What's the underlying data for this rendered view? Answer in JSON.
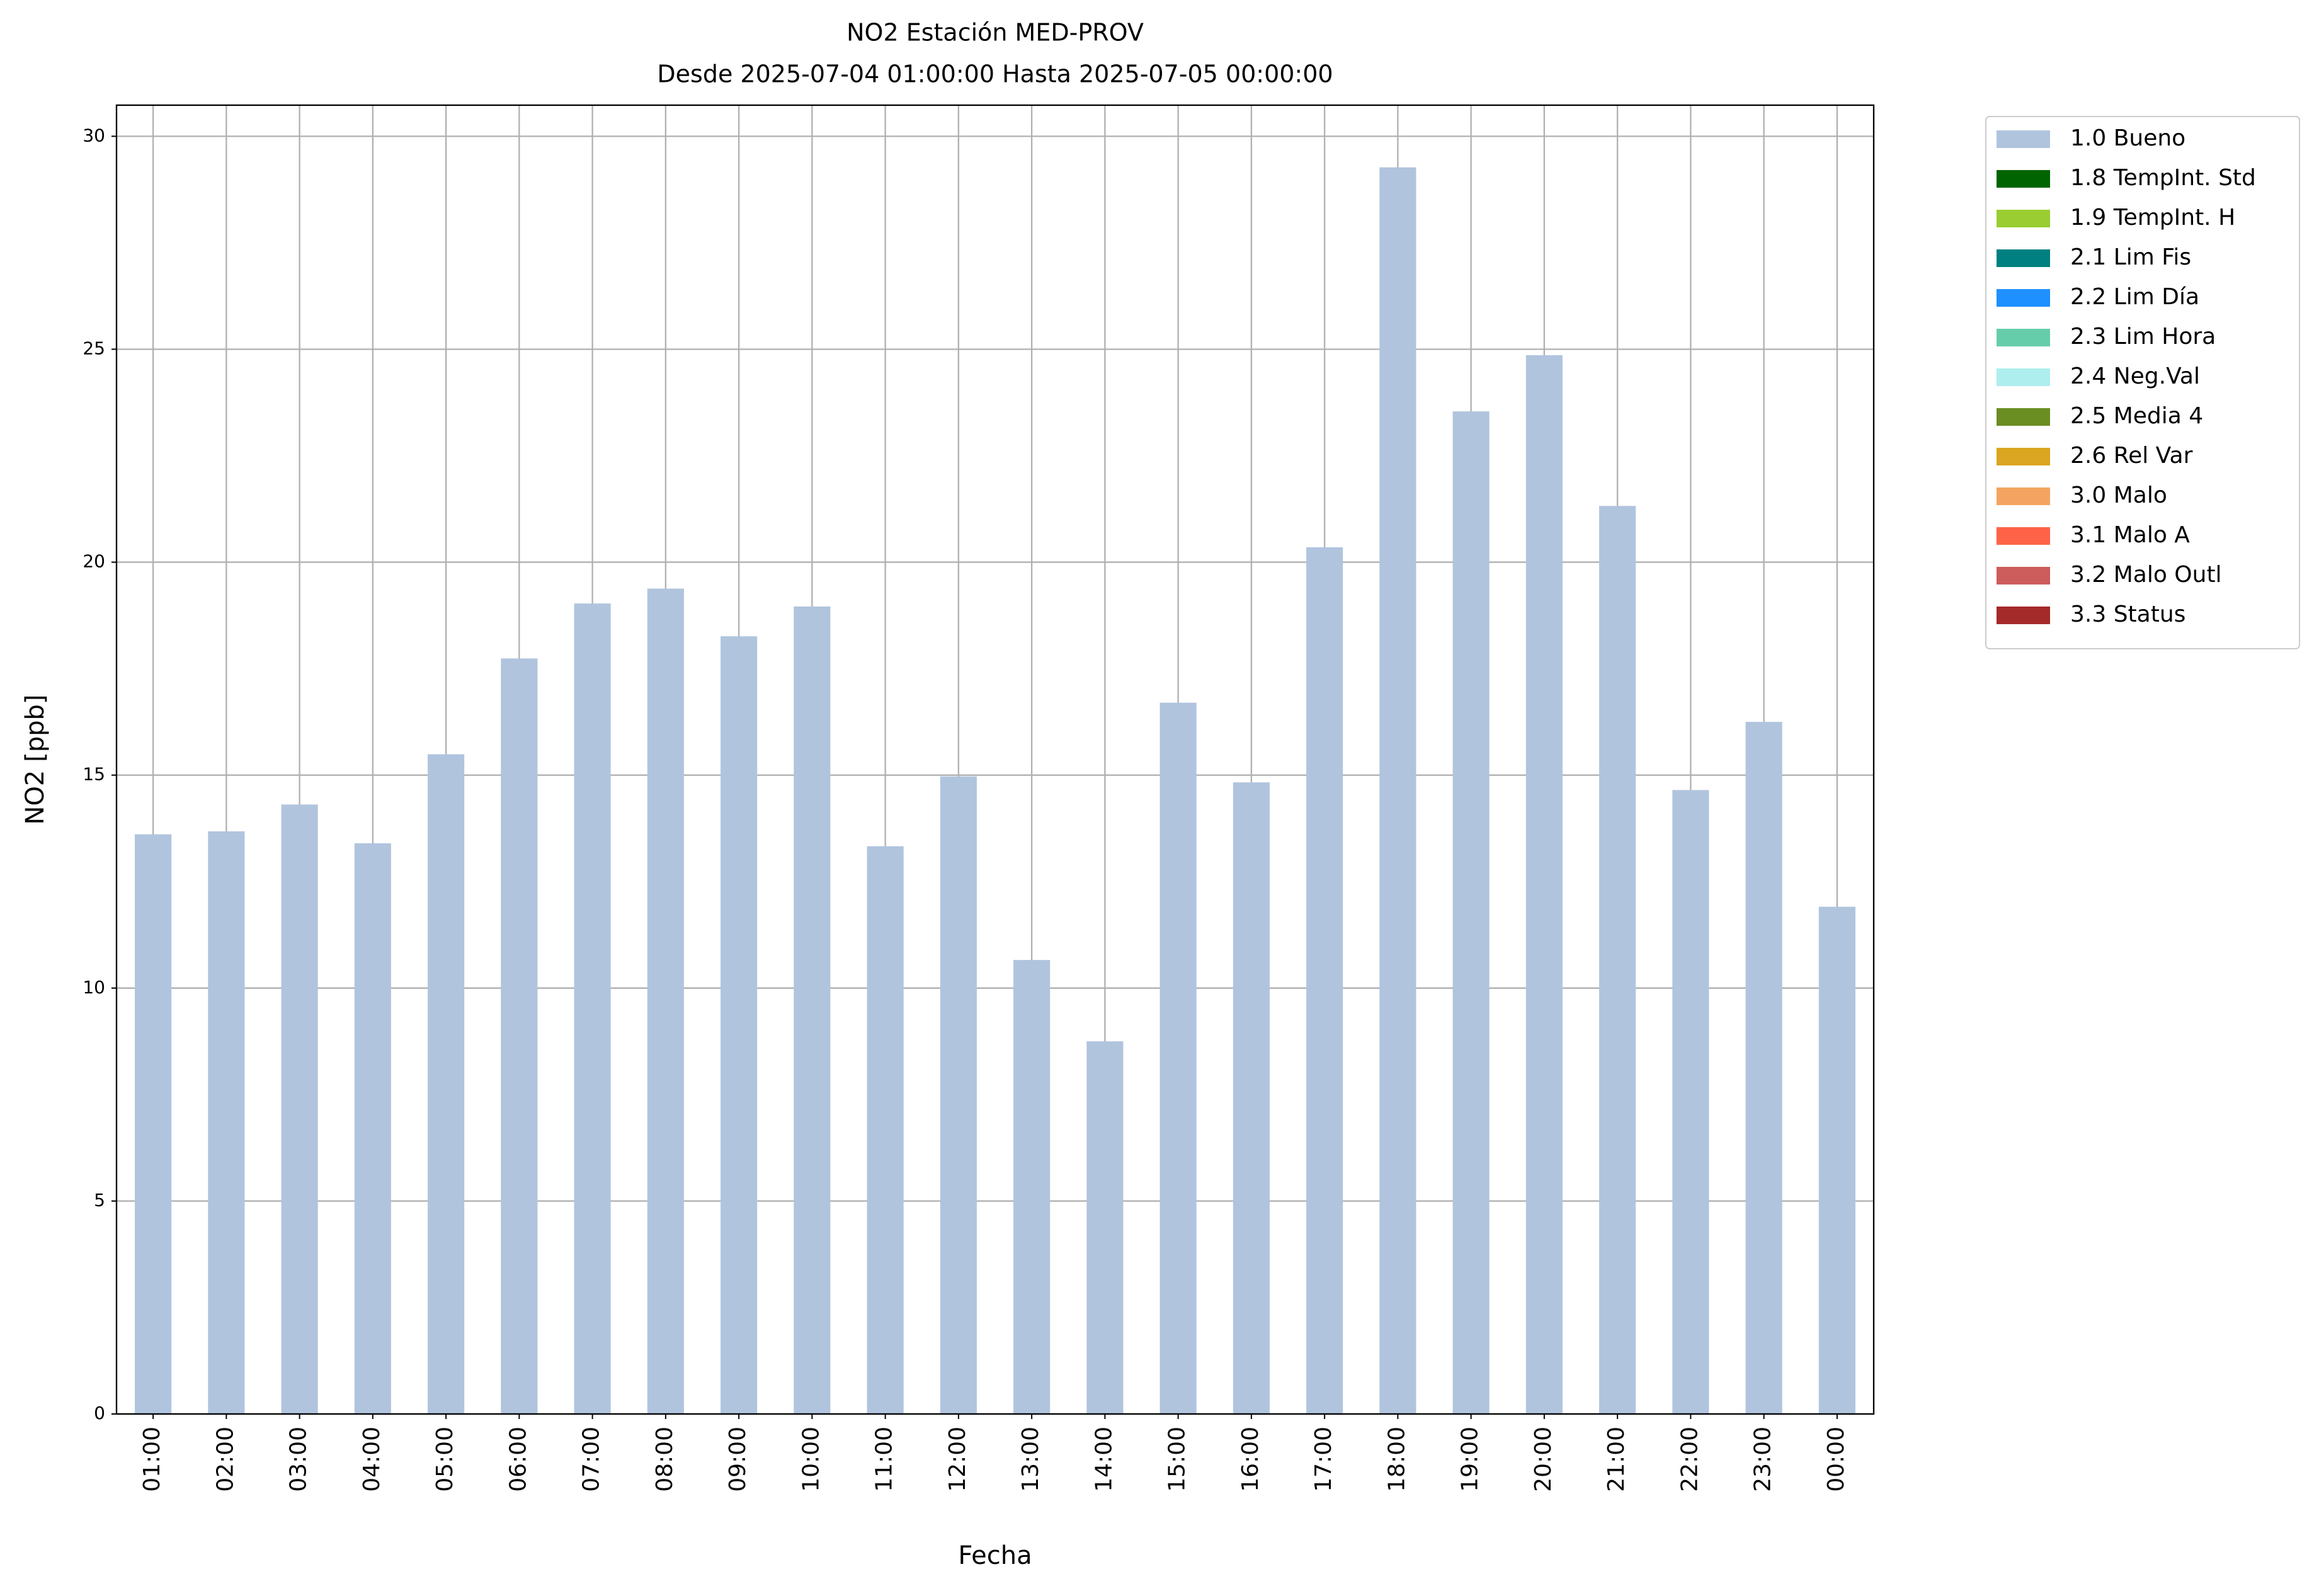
{
  "chart_data": {
    "type": "bar",
    "title": "NO2 Estación MED-PROV",
    "subtitle": "Desde 2025-07-04 01:00:00 Hasta 2025-07-05 00:00:00",
    "x_label": "Fecha",
    "y_label": "NO2 [ppb]",
    "categories": [
      "01:00",
      "02:00",
      "03:00",
      "04:00",
      "05:00",
      "06:00",
      "07:00",
      "08:00",
      "09:00",
      "10:00",
      "11:00",
      "12:00",
      "13:00",
      "14:00",
      "15:00",
      "16:00",
      "17:00",
      "18:00",
      "19:00",
      "20:00",
      "21:00",
      "22:00",
      "23:00",
      "00:00"
    ],
    "series": [
      {
        "name": "1.0 Bueno",
        "color": "#b0c4de",
        "values": [
          13.61,
          13.68,
          14.31,
          13.4,
          15.49,
          17.74,
          19.03,
          19.38,
          18.26,
          18.96,
          13.33,
          14.97,
          10.66,
          8.75,
          16.7,
          14.83,
          20.35,
          29.27,
          23.54,
          24.86,
          21.32,
          14.65,
          16.25,
          11.91
        ]
      },
      {
        "name": "1.8 TempInt. Std",
        "color": "#006400"
      },
      {
        "name": "1.9 TempInt. H",
        "color": "#9acd32"
      },
      {
        "name": "2.1 Lim Fis",
        "color": "#008080"
      },
      {
        "name": "2.2 Lim Día",
        "color": "#1e90ff"
      },
      {
        "name": "2.3 Lim Hora",
        "color": "#66cdaa"
      },
      {
        "name": "2.4 Neg.Val",
        "color": "#afeeee"
      },
      {
        "name": "2.5 Media 4",
        "color": "#6b8e23"
      },
      {
        "name": "2.6 Rel Var",
        "color": "#daa520"
      },
      {
        "name": "3.0 Malo",
        "color": "#f4a460"
      },
      {
        "name": "3.1 Malo A",
        "color": "#ff6347"
      },
      {
        "name": "3.2 Malo Outl",
        "color": "#cd5c5c"
      },
      {
        "name": "3.3 Status",
        "color": "#a52a2a"
      }
    ],
    "ylim": [
      0,
      30.73
    ],
    "yticks": [
      0,
      5,
      10,
      15,
      20,
      25,
      30
    ],
    "grid": true,
    "legend": "outside-upper-right"
  }
}
